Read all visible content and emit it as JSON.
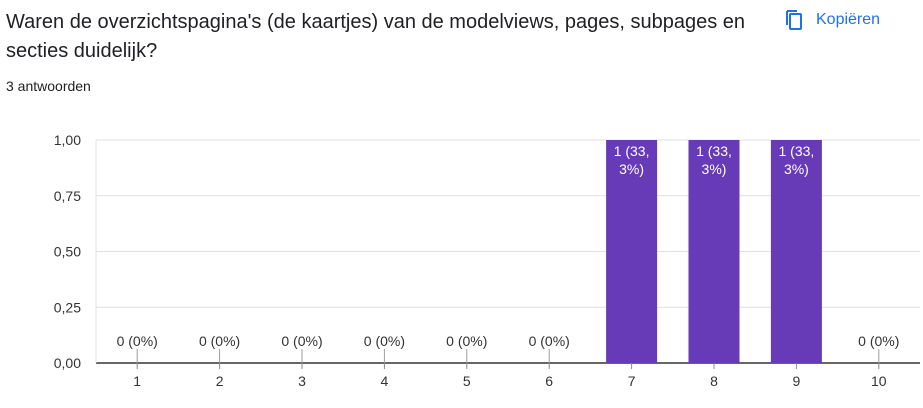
{
  "question": {
    "title": "Waren de overzichtspagina's (de kaartjes) van de modelviews, pages, subpages en secties duidelijk?",
    "responses": "3 antwoorden"
  },
  "copy_button": {
    "label": "Kopiëren",
    "icon": "copy-icon"
  },
  "colors": {
    "bar": "#673ab7",
    "accent": "#1a73e8",
    "grid": "#e0e0e0",
    "axis": "#333333"
  },
  "chart_data": {
    "type": "bar",
    "categories": [
      "1",
      "2",
      "3",
      "4",
      "5",
      "6",
      "7",
      "8",
      "9",
      "10"
    ],
    "values": [
      0,
      0,
      0,
      0,
      0,
      0,
      1,
      1,
      1,
      0
    ],
    "data_labels": [
      [
        "0 (0%)"
      ],
      [
        "0 (0%)"
      ],
      [
        "0 (0%)"
      ],
      [
        "0 (0%)"
      ],
      [
        "0 (0%)"
      ],
      [
        "0 (0%)"
      ],
      [
        "1 (33,",
        "3%)"
      ],
      [
        "1 (33,",
        "3%)"
      ],
      [
        "1 (33,",
        "3%)"
      ],
      [
        "0 (0%)"
      ]
    ],
    "yticks": [
      "0,00",
      "0,25",
      "0,50",
      "0,75",
      "1,00"
    ],
    "ylim": [
      0,
      1
    ],
    "grid": true
  }
}
